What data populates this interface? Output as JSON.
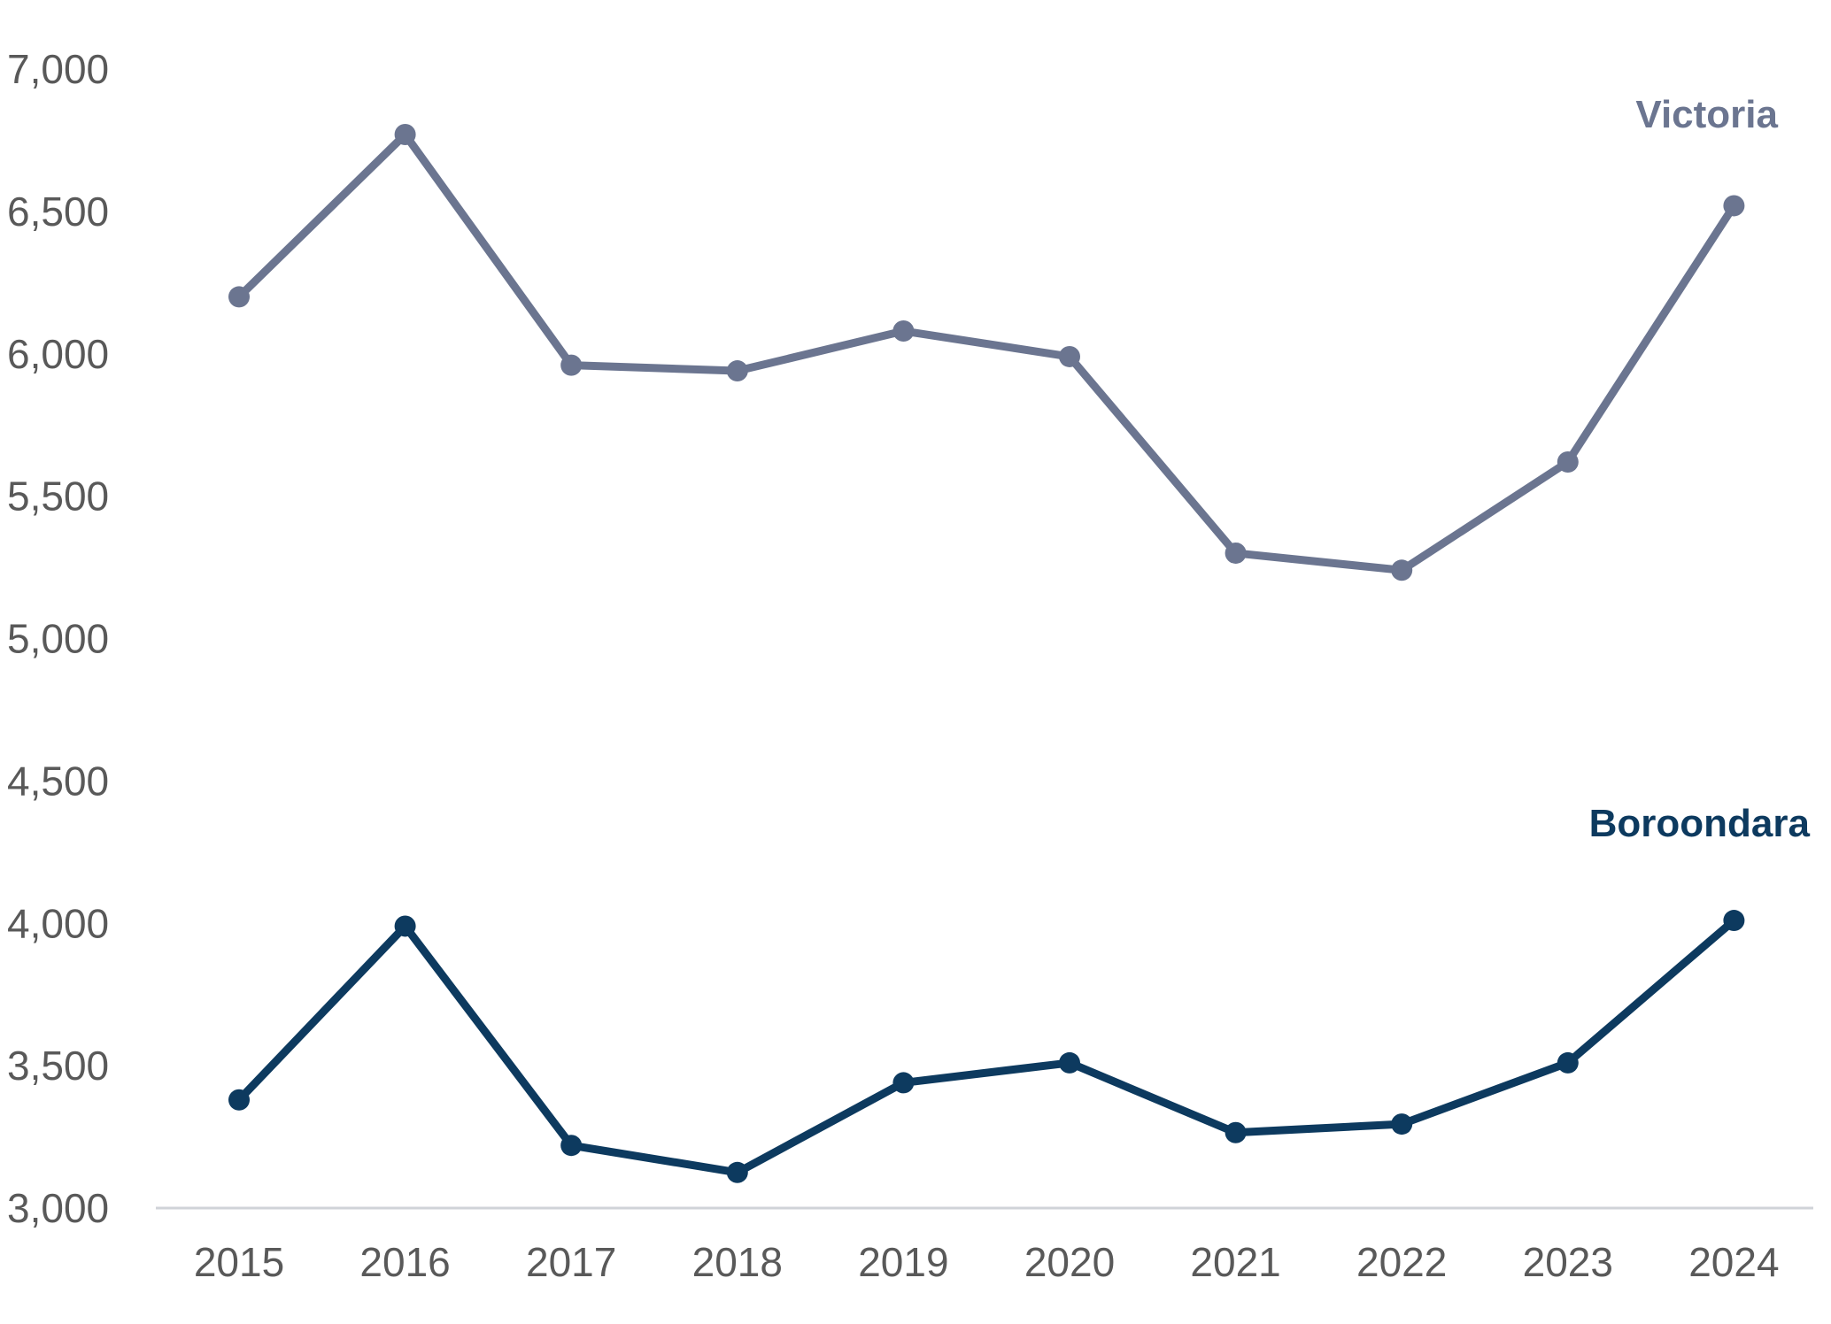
{
  "chart_data": {
    "type": "line",
    "title": "",
    "xlabel": "",
    "ylabel": "",
    "x": [
      "2015",
      "2016",
      "2017",
      "2018",
      "2019",
      "2020",
      "2021",
      "2022",
      "2023",
      "2024"
    ],
    "ylim": [
      3000,
      7000
    ],
    "yticks": [
      3000,
      3500,
      4000,
      4500,
      5000,
      5500,
      6000,
      6500,
      7000
    ],
    "ytick_labels": [
      "3,000",
      "3,500",
      "4,000",
      "4,500",
      "5,000",
      "5,500",
      "6,000",
      "6,500",
      "7,000"
    ],
    "grid": false,
    "legend": "none",
    "series": [
      {
        "name": "Victoria",
        "color": "#6b7590",
        "values": [
          6200,
          6770,
          5960,
          5940,
          6080,
          5990,
          5300,
          5240,
          5620,
          6520
        ]
      },
      {
        "name": "Boroondara",
        "color": "#0d3a5f",
        "values": [
          3380,
          3990,
          3220,
          3125,
          3440,
          3510,
          3265,
          3295,
          3510,
          4010
        ]
      }
    ]
  }
}
